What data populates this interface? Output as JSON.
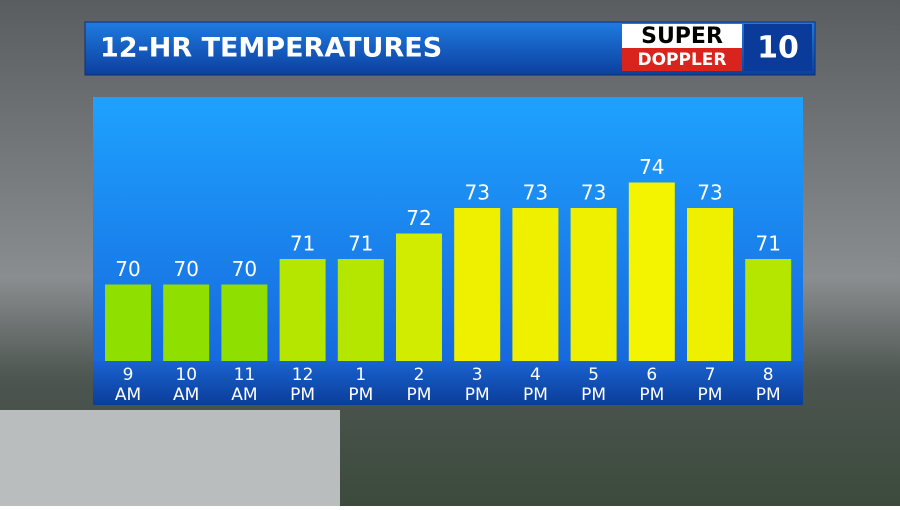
{
  "chart_data": {
    "type": "bar",
    "title": "12-HR TEMPERATURES",
    "categories": [
      [
        "9",
        "AM"
      ],
      [
        "10",
        "AM"
      ],
      [
        "11",
        "AM"
      ],
      [
        "12",
        "PM"
      ],
      [
        "1",
        "PM"
      ],
      [
        "2",
        "PM"
      ],
      [
        "3",
        "PM"
      ],
      [
        "4",
        "PM"
      ],
      [
        "5",
        "PM"
      ],
      [
        "6",
        "PM"
      ],
      [
        "7",
        "PM"
      ],
      [
        "8",
        "PM"
      ]
    ],
    "values": [
      70,
      70,
      70,
      71,
      71,
      72,
      73,
      73,
      73,
      74,
      73,
      71
    ],
    "colors": [
      "#8fe000",
      "#8fe000",
      "#8fe000",
      "#b5e600",
      "#b5e600",
      "#d2ec00",
      "#eef000",
      "#eef000",
      "#eef000",
      "#f4f400",
      "#eef000",
      "#b5e600"
    ],
    "ylim": [
      67,
      77
    ]
  },
  "logo": {
    "top": "SUPER",
    "bottom": "DOPPLER",
    "mark": "10"
  }
}
